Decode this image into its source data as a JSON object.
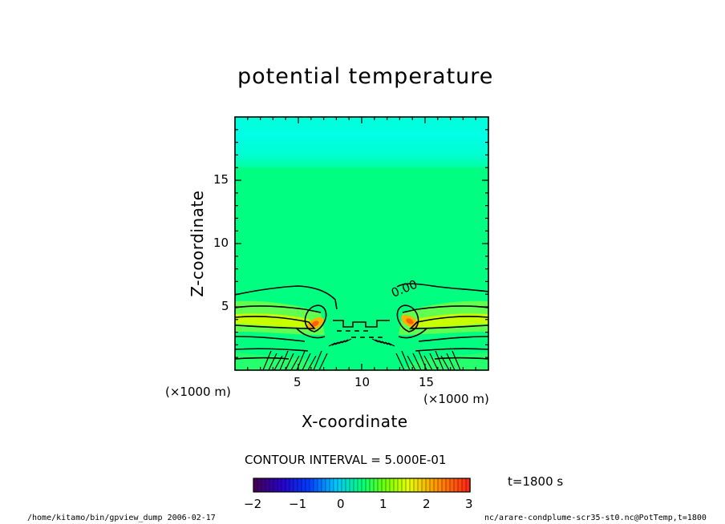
{
  "chart_data": {
    "type": "heatmap",
    "title": "potential temperature",
    "xlabel": "X-coordinate",
    "ylabel": "Z-coordinate",
    "x_unit": "(×1000 m)",
    "y_unit": "(×1000 m)",
    "xlim": [
      0,
      20
    ],
    "ylim": [
      0,
      20
    ],
    "x_ticks": [
      5,
      10,
      15
    ],
    "y_ticks": [
      5,
      10,
      15
    ],
    "contour_interval_text": "CONTOUR INTERVAL = 5.000E-01",
    "contour_label": "0.00",
    "colorbar": {
      "range": [
        -2,
        3
      ],
      "ticks": [
        "−2",
        "−1",
        "0",
        "1",
        "2",
        "3"
      ]
    },
    "time_label": "t=1800 s",
    "colors": {
      "background_field": "#00ff80",
      "upper_layer": "#00ffd2",
      "warm_band": "#b4ff00"
    }
  },
  "footer": {
    "left": "/home/kitamo/bin/gpview_dump  2006-02-17",
    "right": "nc/arare-condplume-scr35-st0.nc@PotTemp,t=1800"
  }
}
